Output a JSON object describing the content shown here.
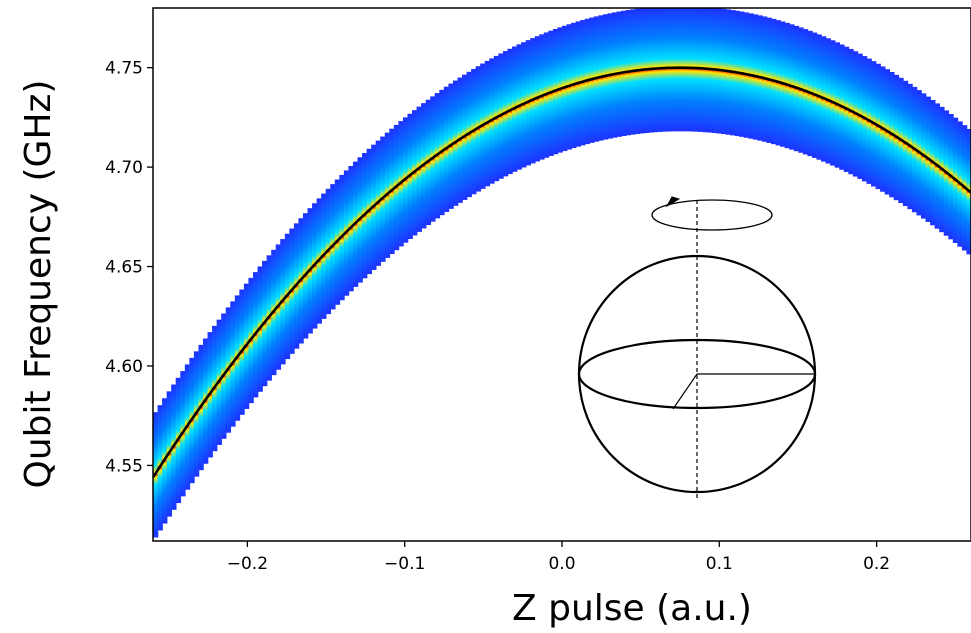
{
  "chart_data": {
    "type": "heatmap",
    "xlabel": "Z pulse (a.u.)",
    "ylabel": "Qubit Frequency (GHz)",
    "xlim": [
      -0.26,
      0.26
    ],
    "ylim": [
      4.512,
      4.78
    ],
    "x_ticks": [
      -0.2,
      -0.1,
      0.0,
      0.1,
      0.2
    ],
    "x_tick_labels": [
      "−0.2",
      "−0.1",
      "0.0",
      "0.1",
      "0.2"
    ],
    "y_ticks": [
      4.55,
      4.6,
      4.65,
      4.7,
      4.75
    ],
    "y_tick_labels": [
      "4.55",
      "4.60",
      "4.65",
      "4.70",
      "4.75"
    ],
    "fit_curve": {
      "model": "parabola",
      "peak_x": 0.075,
      "peak_y": 4.75,
      "points": [
        {
          "x": -0.26,
          "y": 4.544
        },
        {
          "x": -0.2,
          "y": 4.612
        },
        {
          "x": -0.1,
          "y": 4.703
        },
        {
          "x": 0.0,
          "y": 4.741
        },
        {
          "x": 0.075,
          "y": 4.75
        },
        {
          "x": 0.1,
          "y": 4.749
        },
        {
          "x": 0.2,
          "y": 4.717
        },
        {
          "x": 0.26,
          "y": 4.688
        }
      ],
      "color": "#000000"
    },
    "heatmap_band": {
      "halfwidth_above": 0.031,
      "halfwidth_below": 0.032,
      "peak_color": "#b40000",
      "colors": [
        "#1e32ff",
        "#0096ff",
        "#00e6ff",
        "#ffe600",
        "#ff3c00"
      ]
    },
    "inset": {
      "description_icon": "bloch-sphere-icon"
    },
    "grid": false,
    "legend": "none"
  }
}
